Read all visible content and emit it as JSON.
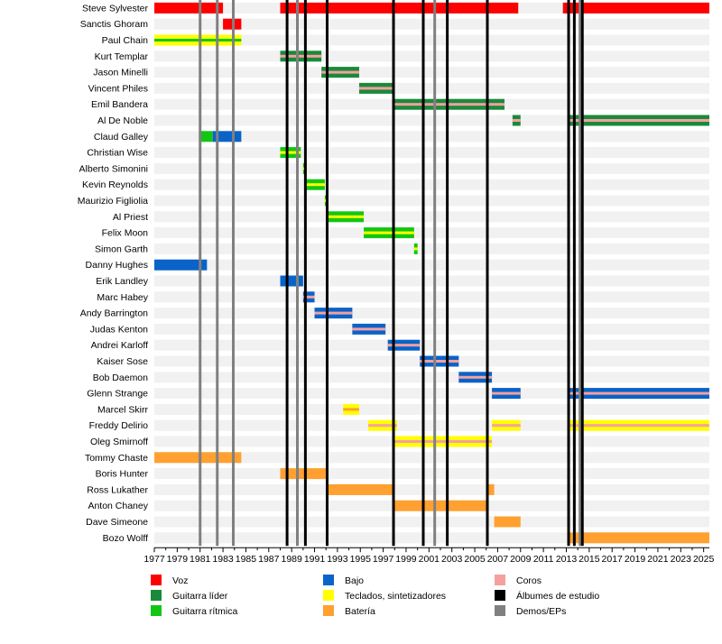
{
  "chart_data": {
    "type": "timeline",
    "x_range": [
      1977,
      2025.5
    ],
    "x_ticks": [
      "1977",
      "1979",
      "1981",
      "1983",
      "1985",
      "1987",
      "1989",
      "1991",
      "1993",
      "1995",
      "1997",
      "1999",
      "2001",
      "2003",
      "2005",
      "2007",
      "2009",
      "2011",
      "2013",
      "2015",
      "2017",
      "2019",
      "2021",
      "2023",
      "2025"
    ],
    "colors": {
      "voz": "#ff0000",
      "guitarra_lider": "#1a8a3a",
      "guitarra_ritmica": "#13c613",
      "bajo": "#0a63c8",
      "teclados": "#ffff00",
      "bateria": "#ffa030",
      "coros": "#f5a0a0",
      "albumes": "#000000",
      "demos": "#808080"
    },
    "legend": [
      {
        "key": "voz",
        "label": "Voz"
      },
      {
        "key": "guitarra_lider",
        "label": "Guitarra líder"
      },
      {
        "key": "guitarra_ritmica",
        "label": "Guitarra rítmica"
      },
      {
        "key": "bajo",
        "label": "Bajo"
      },
      {
        "key": "teclados",
        "label": "Teclados, sintetizadores"
      },
      {
        "key": "bateria",
        "label": "Batería"
      },
      {
        "key": "coros",
        "label": "Coros"
      },
      {
        "key": "albumes",
        "label": "Álbumes de estudio"
      },
      {
        "key": "demos",
        "label": "Demos/EPs"
      }
    ],
    "album_years": [
      1988.6,
      1990.2,
      1992.1,
      1997.9,
      2000.5,
      2002.6,
      2006.1,
      2013.2,
      2013.7,
      2014.4
    ],
    "demo_years": [
      1981.0,
      1982.5,
      1983.9,
      1989.5,
      2001.5,
      2014.2
    ],
    "members": [
      {
        "name": "Steve Sylvester",
        "bars": [
          {
            "s": 1977.0,
            "e": 1983.0,
            "role": "voz"
          },
          {
            "s": 1988.0,
            "e": 2008.8,
            "role": "voz"
          },
          {
            "s": 2012.7,
            "e": 2025.5,
            "role": "voz"
          }
        ]
      },
      {
        "name": "Sanctis Ghoram",
        "bars": [
          {
            "s": 1983.0,
            "e": 1984.6,
            "role": "voz"
          }
        ]
      },
      {
        "name": "Paul Chain",
        "bars": [
          {
            "s": 1977.0,
            "e": 1984.6,
            "role": "teclados",
            "stripe": "guitarra_ritmica"
          }
        ]
      },
      {
        "name": "Kurt Templar",
        "bars": [
          {
            "s": 1988.0,
            "e": 1991.6,
            "role": "guitarra_lider",
            "stripe": "coros"
          }
        ]
      },
      {
        "name": "Jason Minelli",
        "bars": [
          {
            "s": 1991.6,
            "e": 1994.9,
            "role": "guitarra_lider",
            "stripe": "coros"
          }
        ]
      },
      {
        "name": "Vincent Philes",
        "bars": [
          {
            "s": 1994.9,
            "e": 1997.8,
            "role": "guitarra_lider",
            "stripe": "coros"
          }
        ]
      },
      {
        "name": "Emil Bandera",
        "bars": [
          {
            "s": 1997.8,
            "e": 2007.6,
            "role": "guitarra_lider",
            "stripe": "coros"
          }
        ]
      },
      {
        "name": "Al De Noble",
        "bars": [
          {
            "s": 2008.3,
            "e": 2009.0,
            "role": "guitarra_lider",
            "stripe": "coros"
          },
          {
            "s": 2013.2,
            "e": 2025.5,
            "role": "guitarra_lider",
            "stripe": "coros"
          }
        ]
      },
      {
        "name": "Claud Galley",
        "bars": [
          {
            "s": 1980.9,
            "e": 1982.1,
            "role": "guitarra_ritmica"
          },
          {
            "s": 1982.1,
            "e": 1984.6,
            "role": "bajo"
          }
        ]
      },
      {
        "name": "Christian Wise",
        "bars": [
          {
            "s": 1988.0,
            "e": 1989.8,
            "role": "guitarra_ritmica",
            "stripe": "teclados"
          }
        ]
      },
      {
        "name": "Alberto Simonini",
        "bars": [
          {
            "s": 1990.0,
            "e": 1990.3,
            "role": "guitarra_ritmica",
            "stripe": "teclados"
          }
        ]
      },
      {
        "name": "Kevin Reynolds",
        "bars": [
          {
            "s": 1990.3,
            "e": 1991.9,
            "role": "guitarra_ritmica",
            "stripe": "teclados"
          }
        ]
      },
      {
        "name": "Maurizio Figliolia",
        "bars": [
          {
            "s": 1991.9,
            "e": 1992.2,
            "role": "guitarra_ritmica",
            "stripe": "teclados"
          }
        ]
      },
      {
        "name": "Al Priest",
        "bars": [
          {
            "s": 1992.2,
            "e": 1995.3,
            "role": "guitarra_ritmica",
            "stripe": "teclados"
          }
        ]
      },
      {
        "name": "Felix Moon",
        "bars": [
          {
            "s": 1995.3,
            "e": 1999.7,
            "role": "guitarra_ritmica",
            "stripe": "teclados"
          }
        ]
      },
      {
        "name": "Simon Garth",
        "bars": [
          {
            "s": 1999.7,
            "e": 2000.0,
            "role": "guitarra_ritmica",
            "stripe": "teclados"
          }
        ]
      },
      {
        "name": "Danny Hughes",
        "bars": [
          {
            "s": 1977.0,
            "e": 1981.6,
            "role": "bajo"
          }
        ]
      },
      {
        "name": "Erik Landley",
        "bars": [
          {
            "s": 1988.0,
            "e": 1990.0,
            "role": "bajo"
          }
        ]
      },
      {
        "name": "Marc Habey",
        "bars": [
          {
            "s": 1990.0,
            "e": 1991.0,
            "role": "bajo",
            "stripe": "coros"
          }
        ]
      },
      {
        "name": "Andy Barrington",
        "bars": [
          {
            "s": 1991.0,
            "e": 1994.3,
            "role": "bajo",
            "stripe": "coros"
          }
        ]
      },
      {
        "name": "Judas Kenton",
        "bars": [
          {
            "s": 1994.3,
            "e": 1997.2,
            "role": "bajo",
            "stripe": "coros"
          }
        ]
      },
      {
        "name": "Andrei Karloff",
        "bars": [
          {
            "s": 1997.4,
            "e": 2000.2,
            "role": "bajo",
            "stripe": "coros"
          }
        ]
      },
      {
        "name": "Kaiser Sose",
        "bars": [
          {
            "s": 2000.2,
            "e": 2003.6,
            "role": "bajo",
            "stripe": "coros"
          }
        ]
      },
      {
        "name": "Bob Daemon",
        "bars": [
          {
            "s": 2003.6,
            "e": 2006.5,
            "role": "bajo",
            "stripe": "coros"
          }
        ]
      },
      {
        "name": "Glenn Strange",
        "bars": [
          {
            "s": 2006.5,
            "e": 2009.0,
            "role": "bajo",
            "stripe": "coros"
          },
          {
            "s": 2013.2,
            "e": 2025.5,
            "role": "bajo",
            "stripe": "coros"
          }
        ]
      },
      {
        "name": "Marcel Skirr",
        "bars": [
          {
            "s": 1993.5,
            "e": 1994.9,
            "role": "teclados",
            "stripe": "bateria"
          }
        ]
      },
      {
        "name": "Freddy Delirio",
        "bars": [
          {
            "s": 1995.7,
            "e": 1998.2,
            "role": "teclados",
            "stripe": "coros"
          },
          {
            "s": 2006.5,
            "e": 2009.0,
            "role": "teclados",
            "stripe": "coros"
          },
          {
            "s": 2013.2,
            "e": 2025.5,
            "role": "teclados",
            "stripe": "coros"
          }
        ]
      },
      {
        "name": "Oleg Smirnoff",
        "bars": [
          {
            "s": 1998.0,
            "e": 2006.5,
            "role": "teclados",
            "stripe": "coros"
          }
        ]
      },
      {
        "name": "Tommy Chaste",
        "bars": [
          {
            "s": 1977.0,
            "e": 1984.6,
            "role": "bateria"
          }
        ]
      },
      {
        "name": "Boris Hunter",
        "bars": [
          {
            "s": 1988.0,
            "e": 1992.2,
            "role": "bateria"
          }
        ]
      },
      {
        "name": "Ross Lukather",
        "bars": [
          {
            "s": 1992.2,
            "e": 1997.8,
            "role": "bateria"
          },
          {
            "s": 2006.2,
            "e": 2006.7,
            "role": "bateria"
          }
        ]
      },
      {
        "name": "Anton Chaney",
        "bars": [
          {
            "s": 1997.8,
            "e": 2006.2,
            "role": "bateria"
          }
        ]
      },
      {
        "name": "Dave Simeone",
        "bars": [
          {
            "s": 2006.7,
            "e": 2009.0,
            "role": "bateria"
          }
        ]
      },
      {
        "name": "Bozo Wolff",
        "bars": [
          {
            "s": 2013.2,
            "e": 2025.5,
            "role": "bateria"
          }
        ]
      }
    ]
  }
}
